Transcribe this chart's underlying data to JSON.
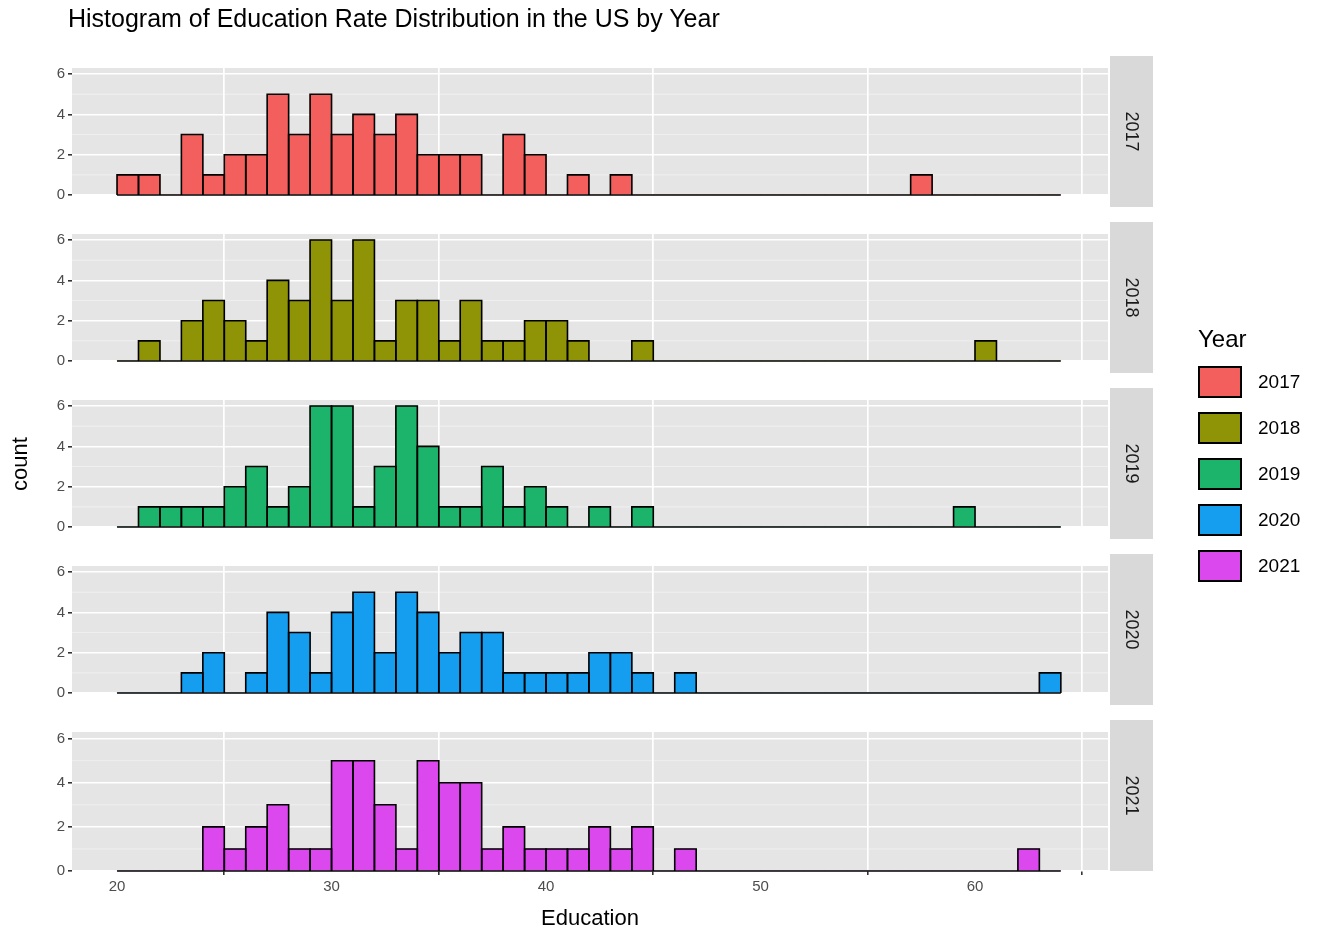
{
  "chart_data": [
    {
      "type": "histogram",
      "title": "Histogram of Education Rate Distribution in the US by Year",
      "legend_title": "Year",
      "legend": "right",
      "grid": true,
      "tick_labels": "y",
      "xlim": [
        17.9,
        66.2
      ],
      "xticks": [
        20,
        30,
        40,
        50,
        60
      ],
      "ylim": [
        0,
        6.3
      ],
      "yticks": [
        0,
        2,
        4,
        6
      ],
      "bins": [
        20,
        21,
        22,
        23,
        24,
        25,
        26,
        27,
        28,
        29,
        30,
        31,
        32,
        33,
        34,
        35,
        36,
        37,
        38,
        39,
        40,
        41,
        42,
        43,
        44,
        45,
        46,
        47,
        48,
        49,
        50,
        51,
        52,
        53,
        54,
        55,
        56,
        57,
        58,
        59,
        60,
        61,
        62,
        63,
        64
      ],
      "series": [
        {
          "name": "2017",
          "color": "#f25f5c",
          "values": [
            1,
            1,
            0,
            3,
            1,
            2,
            2,
            5,
            3,
            5,
            3,
            4,
            3,
            4,
            2,
            2,
            2,
            0,
            3,
            2,
            0,
            1,
            0,
            1,
            0,
            0,
            0,
            0,
            0,
            0,
            0,
            0,
            0,
            0,
            0,
            0,
            0,
            1,
            0,
            0,
            0,
            0,
            0,
            0
          ]
        }
      ]
    },
    {
      "type": "histogram",
      "legend": "right",
      "grid": true,
      "tick_labels": "y",
      "xlim": [
        17.9,
        66.2
      ],
      "xticks": [
        20,
        30,
        40,
        50,
        60
      ],
      "ylim": [
        0,
        6.3
      ],
      "yticks": [
        0,
        2,
        4,
        6
      ],
      "bins": [
        20,
        21,
        22,
        23,
        24,
        25,
        26,
        27,
        28,
        29,
        30,
        31,
        32,
        33,
        34,
        35,
        36,
        37,
        38,
        39,
        40,
        41,
        42,
        43,
        44,
        45,
        46,
        47,
        48,
        49,
        50,
        51,
        52,
        53,
        54,
        55,
        56,
        57,
        58,
        59,
        60,
        61,
        62,
        63,
        64
      ],
      "series": [
        {
          "name": "2018",
          "color": "#8f9406",
          "values": [
            0,
            1,
            0,
            2,
            3,
            2,
            1,
            4,
            3,
            6,
            3,
            6,
            1,
            3,
            3,
            1,
            3,
            1,
            1,
            2,
            2,
            1,
            0,
            0,
            1,
            0,
            0,
            0,
            0,
            0,
            0,
            0,
            0,
            0,
            0,
            0,
            0,
            0,
            0,
            0,
            1,
            0,
            0,
            0
          ]
        }
      ]
    },
    {
      "type": "histogram",
      "ylabel": "count",
      "legend": "right",
      "grid": true,
      "tick_labels": "y",
      "xlim": [
        17.9,
        66.2
      ],
      "xticks": [
        20,
        30,
        40,
        50,
        60
      ],
      "ylim": [
        0,
        6.3
      ],
      "yticks": [
        0,
        2,
        4,
        6
      ],
      "bins": [
        20,
        21,
        22,
        23,
        24,
        25,
        26,
        27,
        28,
        29,
        30,
        31,
        32,
        33,
        34,
        35,
        36,
        37,
        38,
        39,
        40,
        41,
        42,
        43,
        44,
        45,
        46,
        47,
        48,
        49,
        50,
        51,
        52,
        53,
        54,
        55,
        56,
        57,
        58,
        59,
        60,
        61,
        62,
        63,
        64
      ],
      "series": [
        {
          "name": "2019",
          "color": "#1bb46a",
          "values": [
            0,
            1,
            1,
            1,
            1,
            2,
            3,
            1,
            2,
            6,
            6,
            1,
            3,
            6,
            4,
            1,
            1,
            3,
            1,
            2,
            1,
            0,
            1,
            0,
            1,
            0,
            0,
            0,
            0,
            0,
            0,
            0,
            0,
            0,
            0,
            0,
            0,
            0,
            0,
            1,
            0,
            0,
            0,
            0
          ]
        }
      ]
    },
    {
      "type": "histogram",
      "legend": "right",
      "grid": true,
      "tick_labels": "y",
      "xlim": [
        17.9,
        66.2
      ],
      "xticks": [
        20,
        30,
        40,
        50,
        60
      ],
      "ylim": [
        0,
        6.3
      ],
      "yticks": [
        0,
        2,
        4,
        6
      ],
      "bins": [
        20,
        21,
        22,
        23,
        24,
        25,
        26,
        27,
        28,
        29,
        30,
        31,
        32,
        33,
        34,
        35,
        36,
        37,
        38,
        39,
        40,
        41,
        42,
        43,
        44,
        45,
        46,
        47,
        48,
        49,
        50,
        51,
        52,
        53,
        54,
        55,
        56,
        57,
        58,
        59,
        60,
        61,
        62,
        63,
        64
      ],
      "series": [
        {
          "name": "2020",
          "color": "#159eef",
          "values": [
            0,
            0,
            0,
            1,
            2,
            0,
            1,
            4,
            3,
            1,
            4,
            5,
            2,
            5,
            4,
            2,
            3,
            3,
            1,
            1,
            1,
            1,
            2,
            2,
            1,
            0,
            1,
            0,
            0,
            0,
            0,
            0,
            0,
            0,
            0,
            0,
            0,
            0,
            0,
            0,
            0,
            0,
            0,
            1
          ]
        }
      ]
    },
    {
      "type": "histogram",
      "xlabel": "Education",
      "legend": "right",
      "grid": true,
      "xlim": [
        17.9,
        66.2
      ],
      "xticks": [
        20,
        30,
        40,
        50,
        60
      ],
      "ylim": [
        0,
        6.3
      ],
      "yticks": [
        0,
        2,
        4,
        6
      ],
      "bins": [
        20,
        21,
        22,
        23,
        24,
        25,
        26,
        27,
        28,
        29,
        30,
        31,
        32,
        33,
        34,
        35,
        36,
        37,
        38,
        39,
        40,
        41,
        42,
        43,
        44,
        45,
        46,
        47,
        48,
        49,
        50,
        51,
        52,
        53,
        54,
        55,
        56,
        57,
        58,
        59,
        60,
        61,
        62,
        63,
        64
      ],
      "series": [
        {
          "name": "2021",
          "color": "#db48ee",
          "values": [
            0,
            0,
            0,
            0,
            2,
            1,
            2,
            3,
            1,
            1,
            5,
            5,
            3,
            1,
            5,
            4,
            4,
            1,
            2,
            1,
            1,
            1,
            2,
            1,
            2,
            0,
            1,
            0,
            0,
            0,
            0,
            0,
            0,
            0,
            0,
            0,
            0,
            0,
            0,
            0,
            0,
            0,
            1,
            0
          ]
        }
      ]
    }
  ]
}
